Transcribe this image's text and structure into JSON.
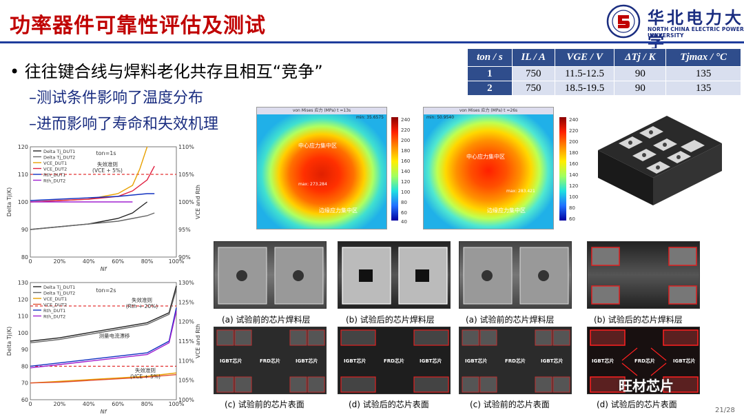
{
  "header": {
    "title": "功率器件可靠性评估及测试",
    "logo_cn": "华北电力大学",
    "logo_en": "NORTH CHINA ELECTRIC POWER UNIVERSITY"
  },
  "content": {
    "bullet": "往往键合线与焊料老化共存且相互“竞争”",
    "sub1": "–测试条件影响了温度分布",
    "sub2": "–进而影响了寿命和失效机理"
  },
  "table": {
    "headers": [
      "ton / s",
      "IL / A",
      "VGE / V",
      "ΔTj / K",
      "Tjmax / °C"
    ],
    "rows": [
      [
        "1",
        "750",
        "11.5-12.5",
        "90",
        "135"
      ],
      [
        "2",
        "750",
        "18.5-19.5",
        "90",
        "135"
      ]
    ]
  },
  "heatmaps": [
    {
      "top_title": "von Mises 应力 (MPa)  t =13s",
      "min_label": "min: 35.6575",
      "center_label": "中心应力集中区",
      "edge_label": "边缘应力集中区",
      "max_label": "max: 273.284"
    },
    {
      "top_title": "von Mises 应力 (MPa)  t =26s",
      "min_label": "min: 50.9540",
      "center_label": "中心应力集中区",
      "edge_label": "边缘应力集中区",
      "max_label": "max: 283.421"
    }
  ],
  "colorbar_ticks": [
    "240",
    "220",
    "200",
    "180",
    "160",
    "140",
    "120",
    "100",
    "80",
    "60",
    "40"
  ],
  "colorbar_ticks2": [
    "240",
    "220",
    "200",
    "180",
    "160",
    "140",
    "120",
    "100",
    "80",
    "60"
  ],
  "chart_data": [
    {
      "type": "line",
      "annotation_ton": "ton=1s",
      "annotation_criterion": "失效准则",
      "annotation_criterion_sub": "(VCE + 5%)",
      "xlabel": "Nf",
      "ylabel_left": "Delta Tj(K)",
      "ylabel_right": "VCE and Rth",
      "x_ticks": [
        "0",
        "20%",
        "40%",
        "60%",
        "80%",
        "100%"
      ],
      "y_left_ticks": [
        "120",
        "110",
        "100",
        "90",
        "80"
      ],
      "y_right_ticks": [
        "110%",
        "105%",
        "100%",
        "95%",
        "90%"
      ],
      "legend": [
        "Delta Tj_DUT1",
        "Delta Tj_DUT2",
        "VCE_DUT1",
        "VCE_DUT2",
        "Rth_DUT1",
        "Rth_DUT2"
      ],
      "ylim_left": [
        80,
        120
      ],
      "series": [
        {
          "name": "Delta Tj_DUT1",
          "color": "#222222",
          "x": [
            0,
            20,
            40,
            60,
            70,
            75,
            80
          ],
          "y": [
            90,
            91,
            92,
            94,
            96,
            98,
            100
          ]
        },
        {
          "name": "Delta Tj_DUT2",
          "color": "#666666",
          "x": [
            0,
            20,
            40,
            60,
            70,
            80,
            85
          ],
          "y": [
            90,
            91,
            92,
            93,
            94,
            95,
            96
          ]
        },
        {
          "name": "VCE_DUT1",
          "color": "#e8a000",
          "x": [
            0,
            20,
            40,
            60,
            70,
            75,
            80
          ],
          "y": [
            100,
            100.5,
            101,
            103,
            106,
            112,
            120
          ]
        },
        {
          "name": "VCE_DUT2",
          "color": "#e02040",
          "x": [
            0,
            20,
            40,
            60,
            70,
            80,
            85
          ],
          "y": [
            100,
            100.5,
            101,
            102,
            104,
            108,
            113
          ]
        },
        {
          "name": "Rth_DUT1",
          "color": "#1030c0",
          "x": [
            0,
            20,
            40,
            60,
            70,
            80,
            85
          ],
          "y": [
            100.5,
            101,
            101.5,
            102,
            102.5,
            103,
            103
          ]
        },
        {
          "name": "Rth_DUT2",
          "color": "#a020d0",
          "x": [
            0,
            20,
            40,
            60,
            70
          ],
          "y": [
            100,
            100,
            100,
            100,
            100
          ]
        }
      ]
    },
    {
      "type": "line",
      "annotation_ton": "ton=2s",
      "annotation_criterion_top": "失效准则",
      "annotation_criterion_top_sub": "(Rth + 20%)",
      "annotation_drift": "测量电流漂移",
      "annotation_criterion_bottom": "失效准则",
      "annotation_criterion_bottom_sub": "(VCE + 5%)",
      "xlabel": "Nf",
      "ylabel_left": "Delta Tj(K)",
      "ylabel_right": "VCE and Rth",
      "x_ticks": [
        "0",
        "20%",
        "40%",
        "60%",
        "80%",
        "100%"
      ],
      "y_left_ticks": [
        "130",
        "120",
        "110",
        "100",
        "90",
        "80",
        "70",
        "60"
      ],
      "y_right_ticks": [
        "130%",
        "125%",
        "120%",
        "115%",
        "110%",
        "105%",
        "100%"
      ],
      "legend": [
        "Delta Tj_DUT1",
        "Delta Tj_DUT2",
        "VCE_DUT1",
        "VCE_DUT2",
        "Rth_DUT1",
        "Rth_DUT2"
      ],
      "ylim_left": [
        60,
        130
      ],
      "series": [
        {
          "name": "Delta Tj_DUT1",
          "color": "#222222",
          "x": [
            0,
            20,
            40,
            60,
            80,
            95,
            100
          ],
          "y": [
            95,
            97,
            100,
            103,
            106,
            112,
            128
          ]
        },
        {
          "name": "Delta Tj_DUT2",
          "color": "#666666",
          "x": [
            0,
            20,
            40,
            60,
            80,
            95,
            100
          ],
          "y": [
            94,
            96,
            99,
            102,
            105,
            111,
            126
          ]
        },
        {
          "name": "VCE_DUT1",
          "color": "#e8a000",
          "x": [
            0,
            20,
            40,
            60,
            80,
            100
          ],
          "y": [
            70,
            71,
            72,
            73,
            74,
            76
          ]
        },
        {
          "name": "VCE_DUT2",
          "color": "#e05030",
          "x": [
            0,
            20,
            40,
            60,
            80,
            100
          ],
          "y": [
            70,
            70.5,
            71.5,
            72.5,
            73.5,
            75
          ]
        },
        {
          "name": "Rth_DUT1",
          "color": "#1030c0",
          "x": [
            0,
            20,
            40,
            60,
            80,
            95,
            100
          ],
          "y": [
            80,
            82,
            84,
            86,
            88,
            95,
            115
          ]
        },
        {
          "name": "Rth_DUT2",
          "color": "#a020d0",
          "x": [
            0,
            20,
            40,
            60,
            80,
            95,
            100
          ],
          "y": [
            79,
            81,
            83,
            85,
            87,
            94,
            113
          ]
        }
      ]
    }
  ],
  "captions": {
    "r1": [
      "(a)  试验前的芯片焊料层",
      "(b)  试验后的芯片焊料层",
      "(a)  试验前的芯片焊料层",
      "(b)  试验后的芯片焊料层"
    ],
    "r2": [
      "(c)  试验前的芯片表面",
      "(d)  试验后的芯片表面",
      "(c)  试验前的芯片表面",
      "(d)  试验后的芯片表面"
    ]
  },
  "chip_labels": {
    "igbt": "IGBT芯片",
    "frd": "FRD芯片"
  },
  "footer": {
    "watermark": "旺材芯片",
    "page": "21/28"
  }
}
